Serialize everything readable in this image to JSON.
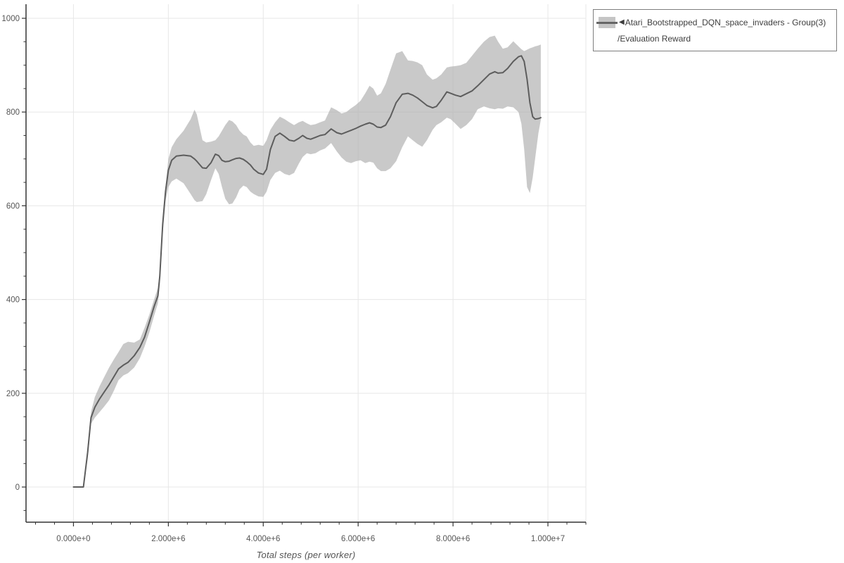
{
  "legend": {
    "collapse_icon": "◀",
    "label_line1": "Atari_Bootstrapped_DQN_space_invaders - Group(3)",
    "label_line2": "/Evaluation Reward"
  },
  "axis": {
    "x_title": "Total steps (per worker)"
  },
  "chart_data": {
    "type": "line",
    "title": "",
    "xlabel": "Total steps (per worker)",
    "ylabel": "",
    "grid": true,
    "legend_position": "outside-top-right",
    "xlim": [
      -1000000,
      10800000
    ],
    "ylim": [
      -75,
      1030
    ],
    "x_tick_values": [
      0,
      2000000,
      4000000,
      6000000,
      8000000,
      10000000
    ],
    "x_tick_labels": [
      "0.000e+0",
      "2.000e+6",
      "4.000e+6",
      "6.000e+6",
      "8.000e+6",
      "1.000e+7"
    ],
    "x_minor_step": 400000,
    "y_tick_values": [
      0,
      200,
      400,
      600,
      800,
      1000
    ],
    "y_tick_labels": [
      "0",
      "200",
      "400",
      "600",
      "800",
      "1000"
    ],
    "y_minor_step": 50,
    "colors": {
      "line": "#5d5d5d",
      "band": "#b0b0b0",
      "band_opacity": 0.68,
      "grid": "#e7e7e7",
      "axis": "#333333",
      "tick_text": "#555555"
    },
    "series": [
      {
        "name": "Atari_Bootstrapped_DQN_space_invaders - Group(3) /Evaluation Reward",
        "x": [
          0,
          210000,
          300000,
          370000,
          450000,
          550000,
          650000,
          750000,
          850000,
          950000,
          1050000,
          1150000,
          1280000,
          1400000,
          1500000,
          1600000,
          1700000,
          1780000,
          1820000,
          1880000,
          1940000,
          2000000,
          2070000,
          2170000,
          2320000,
          2470000,
          2550000,
          2600000,
          2720000,
          2800000,
          2900000,
          2990000,
          3060000,
          3130000,
          3200000,
          3280000,
          3350000,
          3430000,
          3500000,
          3580000,
          3650000,
          3730000,
          3800000,
          3900000,
          4000000,
          4070000,
          4150000,
          4250000,
          4350000,
          4450000,
          4550000,
          4650000,
          4750000,
          4830000,
          4920000,
          5000000,
          5100000,
          5200000,
          5300000,
          5430000,
          5550000,
          5650000,
          5750000,
          5850000,
          5950000,
          6050000,
          6150000,
          6240000,
          6320000,
          6400000,
          6480000,
          6580000,
          6680000,
          6800000,
          6930000,
          7050000,
          7150000,
          7250000,
          7350000,
          7450000,
          7570000,
          7650000,
          7750000,
          7870000,
          7950000,
          8050000,
          8160000,
          8280000,
          8400000,
          8520000,
          8650000,
          8770000,
          8880000,
          8950000,
          9050000,
          9150000,
          9270000,
          9380000,
          9440000,
          9500000,
          9560000,
          9620000,
          9680000,
          9730000,
          9800000,
          9850000
        ],
        "mean": [
          0,
          0,
          75,
          148,
          170,
          188,
          203,
          218,
          235,
          252,
          260,
          266,
          280,
          298,
          320,
          352,
          385,
          408,
          450,
          560,
          630,
          676,
          697,
          706,
          708,
          706,
          700,
          695,
          681,
          680,
          692,
          710,
          707,
          697,
          694,
          695,
          698,
          701,
          702,
          699,
          694,
          687,
          678,
          670,
          667,
          678,
          720,
          748,
          755,
          748,
          740,
          738,
          744,
          750,
          744,
          742,
          746,
          750,
          752,
          764,
          756,
          753,
          757,
          761,
          765,
          770,
          774,
          777,
          774,
          768,
          767,
          772,
          790,
          820,
          838,
          840,
          836,
          830,
          822,
          814,
          809,
          812,
          825,
          843,
          840,
          836,
          833,
          839,
          845,
          856,
          869,
          881,
          886,
          883,
          884,
          893,
          908,
          918,
          920,
          908,
          870,
          820,
          790,
          785,
          786,
          788
        ],
        "band_lower": [
          0,
          0,
          60,
          135,
          148,
          160,
          172,
          185,
          205,
          228,
          238,
          243,
          255,
          275,
          300,
          330,
          365,
          392,
          432,
          540,
          610,
          640,
          652,
          658,
          648,
          625,
          612,
          608,
          610,
          625,
          655,
          680,
          668,
          640,
          615,
          603,
          605,
          618,
          635,
          643,
          640,
          630,
          625,
          620,
          619,
          630,
          655,
          670,
          675,
          668,
          665,
          670,
          690,
          704,
          712,
          710,
          712,
          718,
          722,
          734,
          716,
          703,
          694,
          691,
          695,
          697,
          691,
          694,
          692,
          680,
          674,
          674,
          680,
          695,
          725,
          748,
          740,
          732,
          726,
          740,
          762,
          772,
          778,
          788,
          785,
          775,
          764,
          772,
          785,
          806,
          812,
          808,
          806,
          808,
          807,
          812,
          810,
          800,
          775,
          720,
          640,
          627,
          660,
          700,
          755,
          783
        ],
        "band_upper": [
          0,
          0,
          90,
          160,
          192,
          215,
          235,
          255,
          272,
          288,
          305,
          310,
          308,
          315,
          340,
          368,
          400,
          425,
          460,
          565,
          640,
          700,
          725,
          742,
          760,
          785,
          805,
          795,
          740,
          735,
          737,
          740,
          748,
          760,
          772,
          783,
          780,
          772,
          760,
          752,
          748,
          735,
          728,
          730,
          728,
          740,
          762,
          778,
          790,
          785,
          778,
          772,
          778,
          781,
          776,
          772,
          774,
          778,
          782,
          810,
          804,
          797,
          800,
          808,
          815,
          824,
          840,
          856,
          850,
          835,
          840,
          860,
          890,
          925,
          930,
          910,
          909,
          906,
          900,
          880,
          869,
          872,
          880,
          895,
          897,
          898,
          900,
          905,
          920,
          935,
          950,
          960,
          963,
          950,
          935,
          938,
          951,
          940,
          934,
          930,
          933,
          936,
          938,
          940,
          942,
          944
        ]
      }
    ]
  }
}
